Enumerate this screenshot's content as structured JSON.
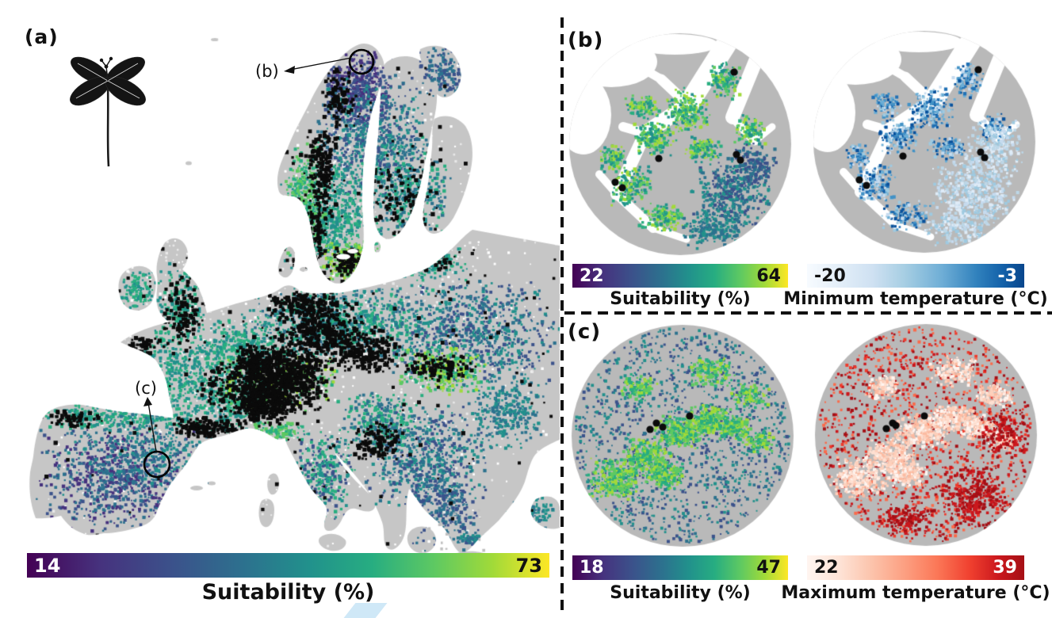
{
  "panels": {
    "a": {
      "label": "(a)",
      "inset_marker_b": "(b)",
      "inset_marker_c": "(c)",
      "colorbar": {
        "min": "14",
        "max": "73",
        "label": "Suitability (%)"
      }
    },
    "b": {
      "label": "(b)",
      "suitability_bar": {
        "min": "22",
        "max": "64",
        "label": "Suitability (%)"
      },
      "temperature_bar": {
        "min": "-20",
        "max": "-3",
        "label": "Minimum temperature (°C)"
      }
    },
    "c": {
      "label": "(c)",
      "suitability_bar": {
        "min": "18",
        "max": "47",
        "label": "Suitability (%)"
      },
      "temperature_bar": {
        "min": "22",
        "max": "39",
        "label": "Maximum temperature (°C)"
      }
    }
  },
  "colors": {
    "viridis": [
      "#440154",
      "#46327e",
      "#3b528b",
      "#2c728e",
      "#21918c",
      "#28ae80",
      "#5ec962",
      "#a0da39",
      "#fde725"
    ],
    "blues": [
      "#c6dbef",
      "#9ecae1",
      "#6baed6",
      "#4292c6",
      "#2171b5",
      "#08519c"
    ],
    "blues_light": [
      "#c6dbef",
      "#9ecae1",
      "#bdd7e7",
      "#deebf7"
    ],
    "reds": [
      "#fb6a4a",
      "#ef3b2c",
      "#cb181d",
      "#a50f15"
    ],
    "reds_light": [
      "#fee0d2",
      "#fcbba1",
      "#fff5f0",
      "#fdd0bc"
    ],
    "land_grey": "#c6c6c6",
    "inset_land_grey": "#b9b9b9",
    "occurrence_black": "#0b0b0b",
    "sea_white": "#ffffff"
  }
}
